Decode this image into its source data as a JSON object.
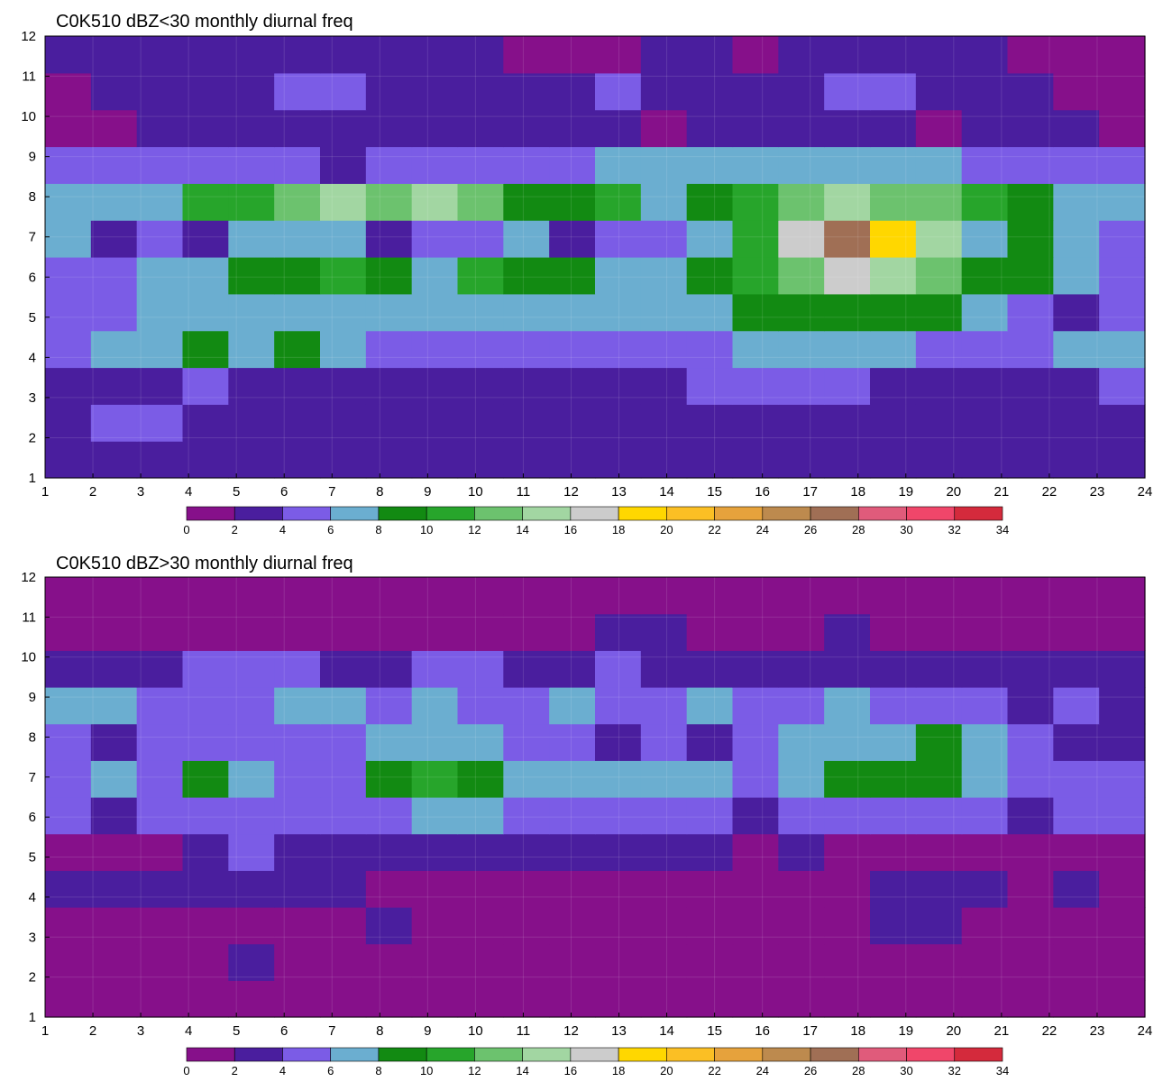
{
  "colorbar": {
    "levels": [
      0,
      2,
      4,
      6,
      8,
      10,
      12,
      14,
      16,
      18,
      20,
      22,
      24,
      26,
      28,
      30,
      32,
      34
    ],
    "colors": [
      "#86108a",
      "#4a1e9e",
      "#7b5ce6",
      "#6baed0",
      "#128a12",
      "#27a52b",
      "#6cc26e",
      "#a2d6a2",
      "#cccccc",
      "#ffd700",
      "#fbbf24",
      "#e6a23c",
      "#bd8a4e",
      "#a06f55",
      "#e05b7b",
      "#f0466a",
      "#d42a3c"
    ],
    "contour_line_color": "#f0b040"
  },
  "chart_data": [
    {
      "type": "heatmap",
      "title": "C0K510 dBZ<30 monthly diurnal freq",
      "xlabel": "",
      "ylabel": "",
      "xlim": [
        1,
        24
      ],
      "ylim": [
        1,
        12
      ],
      "x_ticks": [
        1,
        2,
        3,
        4,
        5,
        6,
        7,
        8,
        9,
        10,
        11,
        12,
        13,
        14,
        15,
        16,
        17,
        18,
        19,
        20,
        21,
        22,
        23,
        24
      ],
      "y_ticks": [
        1,
        2,
        3,
        4,
        5,
        6,
        7,
        8,
        9,
        10,
        11,
        12
      ],
      "grid": true,
      "rows_y": [
        1,
        2,
        3,
        4,
        5,
        6,
        7,
        8,
        9,
        10,
        11,
        12
      ],
      "z": [
        [
          3,
          3,
          3,
          3,
          3,
          3,
          3,
          3,
          3,
          2,
          2,
          3,
          3,
          3,
          3,
          2,
          3,
          3,
          3,
          3,
          3,
          3,
          3,
          3
        ],
        [
          3,
          5,
          5,
          3,
          3,
          3,
          3,
          2,
          2,
          2,
          2,
          2,
          2,
          2,
          2,
          3,
          3,
          3,
          3,
          3,
          3,
          3,
          3,
          3
        ],
        [
          3,
          3,
          3,
          4,
          3,
          3,
          3,
          3,
          3,
          3,
          3,
          3,
          3,
          3,
          4,
          5,
          5,
          5,
          3,
          3,
          3,
          3,
          3,
          4
        ],
        [
          5,
          6,
          6,
          9,
          7,
          9,
          7,
          5,
          5,
          5,
          5,
          4,
          4,
          5,
          5,
          6,
          6,
          6,
          6,
          5,
          5,
          5,
          6,
          6
        ],
        [
          5,
          5,
          6,
          6,
          7,
          7,
          7,
          7,
          7,
          7,
          7,
          6,
          6,
          6,
          7,
          9,
          9,
          9,
          9,
          9,
          7,
          5,
          3,
          5
        ],
        [
          5,
          5,
          6,
          6,
          8,
          9,
          11,
          8,
          7,
          11,
          9,
          9,
          7,
          7,
          8,
          10,
          12,
          16,
          14,
          12,
          9,
          9,
          7,
          5
        ],
        [
          7,
          3,
          5,
          3,
          6,
          7,
          7,
          3,
          4,
          4,
          6,
          3,
          5,
          5,
          7,
          10,
          16,
          27,
          18,
          14,
          7,
          9,
          7,
          5
        ],
        [
          7,
          7,
          7,
          10,
          11,
          12,
          15,
          12,
          15,
          12,
          9,
          9,
          10,
          7,
          8,
          11,
          13,
          15,
          13,
          12,
          10,
          9,
          7,
          7
        ],
        [
          5,
          5,
          5,
          5,
          5,
          5,
          3,
          5,
          5,
          5,
          5,
          5,
          6,
          6,
          6,
          6,
          7,
          7,
          6,
          6,
          5,
          4,
          5,
          5
        ],
        [
          1,
          1,
          3,
          3,
          3,
          3,
          3,
          3,
          3,
          3,
          3,
          3,
          3,
          1,
          3,
          3,
          3,
          3,
          3,
          1,
          3,
          3,
          3,
          1
        ],
        [
          1,
          3,
          3,
          3,
          3,
          5,
          5,
          3,
          3,
          3,
          3,
          3,
          5,
          3,
          3,
          3,
          3,
          5,
          5,
          3,
          3,
          3,
          1,
          1
        ],
        [
          3,
          3,
          3,
          3,
          3,
          3,
          3,
          3,
          3,
          3,
          1,
          1,
          1,
          3,
          3,
          1,
          3,
          3,
          3,
          3,
          3,
          1,
          1,
          1
        ]
      ]
    },
    {
      "type": "heatmap",
      "title": "C0K510 dBZ>30 monthly diurnal freq",
      "xlabel": "",
      "ylabel": "",
      "xlim": [
        1,
        24
      ],
      "ylim": [
        1,
        12
      ],
      "x_ticks": [
        1,
        2,
        3,
        4,
        5,
        6,
        7,
        8,
        9,
        10,
        11,
        12,
        13,
        14,
        15,
        16,
        17,
        18,
        19,
        20,
        21,
        22,
        23,
        24
      ],
      "y_ticks": [
        1,
        2,
        3,
        4,
        5,
        6,
        7,
        8,
        9,
        10,
        11,
        12
      ],
      "grid": true,
      "rows_y": [
        1,
        2,
        3,
        4,
        5,
        6,
        7,
        8,
        9,
        10,
        11,
        12
      ],
      "z": [
        [
          1,
          1,
          1,
          1,
          1,
          1,
          1,
          1,
          1,
          1,
          1,
          1,
          1,
          1,
          1,
          1,
          1,
          1,
          1,
          1,
          1,
          1,
          1,
          1
        ],
        [
          1,
          1,
          1,
          1,
          3,
          1,
          1,
          1,
          1,
          1,
          1,
          1,
          1,
          1,
          1,
          1,
          1,
          1,
          1,
          1,
          1,
          1,
          1,
          1
        ],
        [
          1,
          1,
          1,
          1,
          1,
          1,
          1,
          3,
          1,
          1,
          1,
          1,
          1,
          1,
          1,
          1,
          1,
          1,
          3,
          3,
          1,
          1,
          1,
          1
        ],
        [
          3,
          3,
          3,
          3,
          3,
          3,
          3,
          1,
          1,
          1,
          1,
          1,
          1,
          1,
          1,
          1,
          1,
          1,
          3,
          3,
          3,
          1,
          3,
          1
        ],
        [
          1,
          1,
          1,
          3,
          5,
          3,
          3,
          3,
          3,
          3,
          3,
          3,
          3,
          3,
          3,
          1,
          3,
          1,
          1,
          1,
          1,
          1,
          1,
          1
        ],
        [
          5,
          3,
          5,
          5,
          5,
          5,
          5,
          5,
          7,
          7,
          5,
          5,
          5,
          5,
          5,
          3,
          5,
          5,
          5,
          5,
          5,
          3,
          5,
          5
        ],
        [
          5,
          7,
          5,
          9,
          7,
          5,
          5,
          9,
          11,
          9,
          7,
          7,
          7,
          7,
          7,
          5,
          7,
          9,
          9,
          9,
          7,
          5,
          5,
          5
        ],
        [
          5,
          3,
          5,
          5,
          5,
          5,
          5,
          7,
          7,
          7,
          5,
          5,
          3,
          5,
          3,
          5,
          7,
          7,
          7,
          9,
          7,
          5,
          3,
          3
        ],
        [
          7,
          7,
          5,
          5,
          5,
          7,
          7,
          5,
          7,
          5,
          5,
          7,
          5,
          5,
          7,
          5,
          5,
          7,
          5,
          5,
          5,
          3,
          5,
          3
        ],
        [
          3,
          3,
          3,
          5,
          5,
          5,
          3,
          3,
          5,
          5,
          3,
          3,
          5,
          3,
          3,
          3,
          3,
          3,
          3,
          3,
          3,
          3,
          3,
          3
        ],
        [
          1,
          1,
          1,
          1,
          1,
          1,
          1,
          1,
          1,
          1,
          1,
          1,
          3,
          3,
          1,
          1,
          1,
          3,
          1,
          1,
          1,
          1,
          1,
          1
        ],
        [
          1,
          1,
          1,
          1,
          1,
          1,
          1,
          1,
          1,
          1,
          1,
          1,
          1,
          1,
          1,
          1,
          1,
          1,
          1,
          1,
          1,
          1,
          1,
          1
        ]
      ]
    }
  ]
}
